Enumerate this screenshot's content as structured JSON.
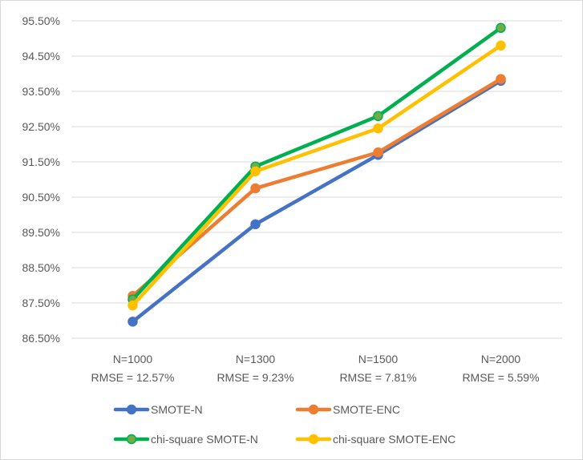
{
  "chart_data": {
    "type": "line",
    "title": "",
    "xlabel": "",
    "ylabel": "",
    "categories": [
      [
        "N=1000",
        "RMSE = 12.57%"
      ],
      [
        "N=1300",
        "RMSE = 9.23%"
      ],
      [
        "N=1500",
        "RMSE = 7.81%"
      ],
      [
        "N=2000",
        "RMSE = 5.59%"
      ]
    ],
    "ylim": [
      86.5,
      95.5
    ],
    "yticks": [
      86.5,
      87.5,
      88.5,
      89.5,
      90.5,
      91.5,
      92.5,
      93.5,
      94.5,
      95.5
    ],
    "ytick_labels": [
      "86.50%",
      "87.50%",
      "88.50%",
      "89.50%",
      "90.50%",
      "91.50%",
      "92.50%",
      "93.50%",
      "94.50%",
      "95.50%"
    ],
    "grid": true,
    "legend_position": "bottom",
    "series": [
      {
        "name": "SMOTE-N",
        "color": "#4472c4",
        "values": [
          86.97,
          89.73,
          91.7,
          93.8
        ]
      },
      {
        "name": "SMOTE-ENC",
        "color": "#ed7d31",
        "values": [
          87.7,
          90.75,
          91.77,
          93.85
        ]
      },
      {
        "name": "chi-square SMOTE-N",
        "color": "#00b050",
        "marker_color": "#70ad47",
        "values": [
          87.6,
          91.37,
          92.8,
          95.3
        ]
      },
      {
        "name": "chi-square SMOTE-ENC",
        "color": "#ffc000",
        "values": [
          87.43,
          91.23,
          92.45,
          94.8
        ]
      }
    ]
  }
}
